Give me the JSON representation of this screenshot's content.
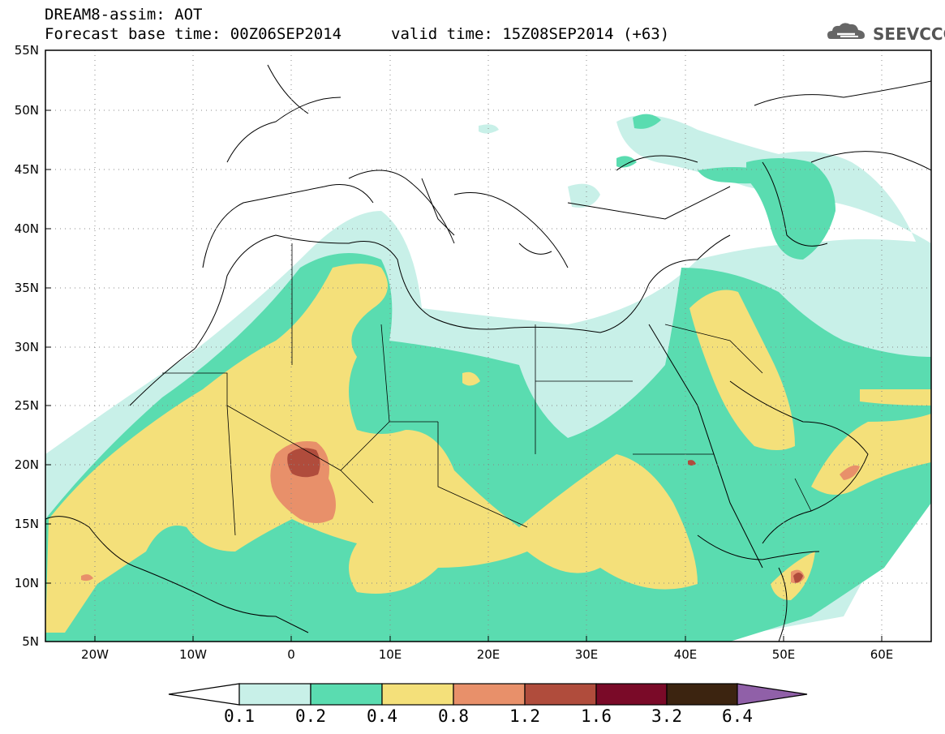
{
  "header": {
    "line1": "DREAM8-assim: AOT",
    "line2": "Forecast base time: 00Z06SEP2014",
    "line3": "valid time: 15Z08SEP2014 (+63)"
  },
  "logo": {
    "text": "SEEVCCC",
    "icon": "cloud-icon"
  },
  "map": {
    "lat_labels": [
      "55N",
      "50N",
      "45N",
      "40N",
      "35N",
      "30N",
      "25N",
      "20N",
      "15N",
      "10N",
      "5N"
    ],
    "lon_labels": [
      "20W",
      "10W",
      "0",
      "10E",
      "20E",
      "30E",
      "40E",
      "50E",
      "60E"
    ],
    "lon_range": [
      -25,
      65
    ],
    "lat_range": [
      5,
      55
    ]
  },
  "colorbar": {
    "labels": [
      "0.1",
      "0.2",
      "0.4",
      "0.8",
      "1.2",
      "1.6",
      "3.2",
      "6.4"
    ],
    "colors": [
      "#ffffff",
      "#c8f0e8",
      "#5adcb0",
      "#f4e07a",
      "#e8906a",
      "#b04c3c",
      "#7a0a28",
      "#3c2410",
      "#9060a8"
    ]
  }
}
